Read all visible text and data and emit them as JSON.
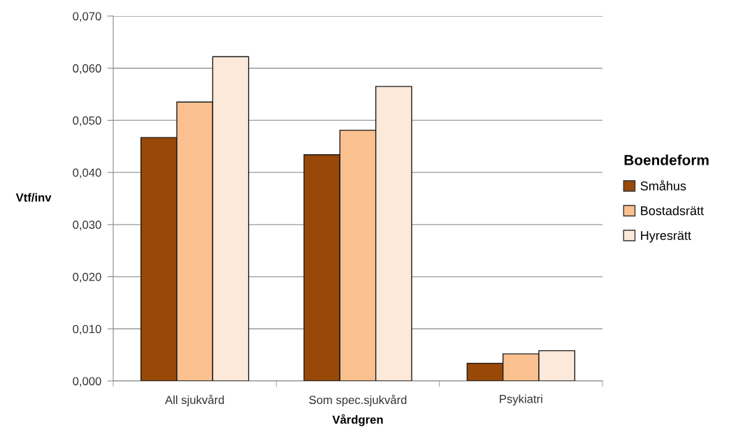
{
  "chart_data": {
    "type": "bar",
    "xlabel": "Vårdgren",
    "ylabel": "Vtf/inv",
    "legend_title": "Boendeform",
    "categories": [
      "All sjukvård",
      "Som spec.sjukvård",
      "Psykiatri"
    ],
    "series": [
      {
        "name": "Småhus",
        "color": "#984807",
        "values": [
          0.0467,
          0.0434,
          0.0034
        ]
      },
      {
        "name": "Bostadsrätt",
        "color": "#fac090",
        "values": [
          0.0535,
          0.0481,
          0.0052
        ]
      },
      {
        "name": "Hyresrätt",
        "color": "#fde9d9",
        "values": [
          0.0622,
          0.0565,
          0.0058
        ]
      }
    ],
    "ylim": [
      0,
      0.07
    ],
    "yticks": [
      {
        "value": 0,
        "label": "0,000"
      },
      {
        "value": 0.01,
        "label": "0,010"
      },
      {
        "value": 0.02,
        "label": "0,020"
      },
      {
        "value": 0.03,
        "label": "0,030"
      },
      {
        "value": 0.04,
        "label": "0,040"
      },
      {
        "value": 0.05,
        "label": "0,050"
      },
      {
        "value": 0.06,
        "label": "0,060"
      },
      {
        "value": 0.07,
        "label": "0,070"
      }
    ],
    "grid": "y",
    "legend": "right"
  }
}
